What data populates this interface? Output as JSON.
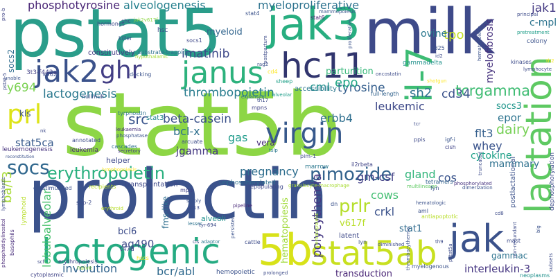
{
  "cloud": {
    "words": [
      {
        "text": "stat5b",
        "color": "#8dd645"
      },
      {
        "text": "prolactin",
        "color": "#3b528b"
      },
      {
        "text": "pstat5",
        "color": "#2a9d8a"
      },
      {
        "text": "milk",
        "color": "#3e4a89"
      },
      {
        "text": "jak3",
        "color": "#28ae80"
      },
      {
        "text": "janus",
        "color": "#2db27d"
      },
      {
        "text": "jak2",
        "color": "#3b528b"
      },
      {
        "text": "hc11",
        "color": "#31356e"
      },
      {
        "text": "ghr",
        "color": "#433e85"
      },
      {
        "text": "lactogenic",
        "color": "#25ab82"
      },
      {
        "text": "stat5ab",
        "color": "#c8e020"
      },
      {
        "text": "jak",
        "color": "#3b528b"
      },
      {
        "text": "5b",
        "color": "#d8e219"
      },
      {
        "text": "virgin",
        "color": "#38598c"
      },
      {
        "text": "socs",
        "color": "#31688e"
      },
      {
        "text": "lactation",
        "color": "#5ec962"
      },
      {
        "text": "il-7",
        "color": "#3dbc74"
      },
      {
        "text": "prl",
        "color": "#dde318"
      },
      {
        "text": "erythropoietin",
        "color": "#2ab07f"
      },
      {
        "text": "pimozide",
        "color": "#33638d"
      },
      {
        "text": "phosphotyrosine",
        "color": "#482475"
      },
      {
        "text": "alveologenesis",
        "color": "#27808e"
      },
      {
        "text": "myeloproliferative",
        "color": "#2c728e"
      },
      {
        "text": "tpo",
        "color": "#c2df23"
      },
      {
        "text": "jak1",
        "color": "#443983"
      },
      {
        "text": "c-mpl",
        "color": "#2c738e"
      },
      {
        "text": "parturition",
        "color": "#35b779"
      },
      {
        "text": "myeloid",
        "color": "#32658e"
      },
      {
        "text": "ovine",
        "color": "#2a788e"
      },
      {
        "text": "imatinib",
        "color": "#3e4989"
      },
      {
        "text": "lactogenesis",
        "color": "#2a788e"
      },
      {
        "text": "tyrosine",
        "color": "#355f8d"
      },
      {
        "text": "myelofibrosis",
        "color": "#46327e"
      },
      {
        "text": "thrombopoietin",
        "color": "#287c8e"
      },
      {
        "text": "cml",
        "color": "#20928c"
      },
      {
        "text": "epo",
        "color": "#21a685"
      },
      {
        "text": "sh2",
        "color": "#2d718e"
      },
      {
        "text": "tcrgamma",
        "color": "#3fbc73"
      },
      {
        "text": "cd34",
        "color": "#3b528b"
      },
      {
        "text": "leukemic",
        "color": "#3e4989"
      },
      {
        "text": "y694",
        "color": "#7ad151"
      },
      {
        "text": "src",
        "color": "#3a548c"
      },
      {
        "text": "beta-casein",
        "color": "#3b528b"
      },
      {
        "text": "erbb4",
        "color": "#2e6e8e"
      },
      {
        "text": "socs3",
        "color": "#1f968b"
      },
      {
        "text": "epor",
        "color": "#2c738e"
      },
      {
        "text": "dairy",
        "color": "#75d054"
      },
      {
        "text": "bcl-x",
        "color": "#2e6f8e"
      },
      {
        "text": "gas",
        "color": "#1e9b8a"
      },
      {
        "text": "flt3",
        "color": "#355f8d"
      },
      {
        "text": "stat5ca",
        "color": "#375a8c"
      },
      {
        "text": "vera",
        "color": "#472c7a"
      },
      {
        "text": "whey",
        "color": "#3a548c"
      },
      {
        "text": "jgamma",
        "color": "#453882"
      },
      {
        "text": "cytokine",
        "color": "#1fa088"
      },
      {
        "text": "mammary",
        "color": "#2d708e"
      },
      {
        "text": "pregnancy",
        "color": "#2e6e8e"
      },
      {
        "text": "gm-csf",
        "color": "#424086"
      },
      {
        "text": "gland",
        "color": "#31b57b"
      },
      {
        "text": "cos",
        "color": "#3a548c"
      },
      {
        "text": "ba/f3",
        "color": "#a8db34"
      },
      {
        "text": "prlr",
        "color": "#b5de2b"
      },
      {
        "text": "crkl",
        "color": "#3b528b"
      },
      {
        "text": "cows",
        "color": "#42be71"
      },
      {
        "text": "bcl6",
        "color": "#3d4d8a"
      },
      {
        "text": "ag490",
        "color": "#3e4c8a"
      },
      {
        "text": "polycythemia",
        "color": "#453882"
      },
      {
        "text": "v617f",
        "color": "#b8de29"
      },
      {
        "text": "lobuloalveolar",
        "color": "#4ac16d"
      },
      {
        "text": "stat1",
        "color": "#2f6b8e"
      },
      {
        "text": "involution",
        "color": "#32648e"
      },
      {
        "text": "bcr/abl",
        "color": "#306a8e"
      },
      {
        "text": "interleukin-3",
        "color": "#453581"
      },
      {
        "text": "gammac",
        "color": "#2c738e"
      },
      {
        "text": "hematopoiesis",
        "color": "#a0da39"
      },
      {
        "text": "transduction",
        "color": "#482475"
      },
      {
        "text": "stat4",
        "color": "#3b528b"
      },
      {
        "text": "stat6",
        "color": "#482173"
      },
      {
        "text": "mammopoiesis",
        "color": "#39568c"
      },
      {
        "text": "hormones",
        "color": "#3e4a89"
      },
      {
        "text": "shc",
        "color": "#3e4989"
      },
      {
        "text": "jak2v617f",
        "color": "#8fd744"
      },
      {
        "text": "killer",
        "color": "#3b518b"
      },
      {
        "text": "hsc",
        "color": "#3e4c8a"
      },
      {
        "text": "socs1",
        "color": "#3f4889"
      },
      {
        "text": "constitutively",
        "color": "#443a83"
      },
      {
        "text": "substrate-trapping",
        "color": "#2d708e"
      },
      {
        "text": "hypothalamic",
        "color": "#a5db36"
      },
      {
        "text": "k562",
        "color": "#3e4a89"
      },
      {
        "text": "socs2",
        "color": "#2f6c8e"
      },
      {
        "text": "3t3-f442a",
        "color": "#424086"
      },
      {
        "text": "null/null",
        "color": "#3e4c8a"
      },
      {
        "text": "docking",
        "color": "#3b528b"
      },
      {
        "text": "cd4",
        "color": "#fde725"
      },
      {
        "text": "sheep",
        "color": "#1fa088"
      },
      {
        "text": "accessibility",
        "color": "#2a788e"
      },
      {
        "text": "full-length",
        "color": "#33638d"
      },
      {
        "text": "kls",
        "color": "#3b528b"
      },
      {
        "text": "th17",
        "color": "#3e4c8a"
      },
      {
        "text": "alveolar",
        "color": "#1f9e89"
      },
      {
        "text": "tyrphostin",
        "color": "#2c728e"
      },
      {
        "text": "leukaemia",
        "color": "#472f7d"
      },
      {
        "text": "phosphatase",
        "color": "#3b528b"
      },
      {
        "text": "annotated",
        "color": "#3e4c8a"
      },
      {
        "text": "leukemia",
        "color": "#482878"
      },
      {
        "text": "leukemogenesis",
        "color": "#46327e"
      },
      {
        "text": "mpns",
        "color": "#414487"
      },
      {
        "text": "expansion",
        "color": "#2e6e8e"
      },
      {
        "text": "stat3",
        "color": "#24868e"
      },
      {
        "text": "tslp",
        "color": "#2a788e"
      },
      {
        "text": "igf-i",
        "color": "#3a548c"
      },
      {
        "text": "cish",
        "color": "#414487"
      },
      {
        "text": "ppis",
        "color": "#3e4a89"
      },
      {
        "text": "arcuate",
        "color": "#3e4c8a"
      },
      {
        "text": "cascades",
        "color": "#2d708e"
      },
      {
        "text": "secretory",
        "color": "#443983"
      },
      {
        "text": "helper",
        "color": "#3e4989"
      },
      {
        "text": "lymphopoiesis",
        "color": "#fde725"
      },
      {
        "text": "marrow",
        "color": "#2a778e"
      },
      {
        "text": "il2rbeta",
        "color": "#414487"
      },
      {
        "text": "pim-1",
        "color": "#3e4c8a"
      },
      {
        "text": "repopulating",
        "color": "#3e4989"
      },
      {
        "text": "multilineage",
        "color": "#5ec962"
      },
      {
        "text": "tetramers",
        "color": "#33638d"
      },
      {
        "text": "unphosphorylated",
        "color": "#2d708e"
      },
      {
        "text": "granulocyte-macrophage",
        "color": "#a8db34"
      },
      {
        "text": "transplantation",
        "color": "#3e4989"
      },
      {
        "text": "recipients",
        "color": "#b8de29"
      },
      {
        "text": "gh-stimulated",
        "color": "#3b528b"
      },
      {
        "text": "mpd",
        "color": "#414487"
      },
      {
        "text": "dimerization",
        "color": "#3b528b"
      },
      {
        "text": "phosphorylated",
        "color": "#46327e"
      },
      {
        "text": "fyn",
        "color": "#3b528b"
      },
      {
        "text": "stably",
        "color": "#3b528b"
      },
      {
        "text": "at13",
        "color": "#3e4c8a"
      },
      {
        "text": "pipeline",
        "color": "#482878"
      },
      {
        "text": "shp-2",
        "color": "#3e4c8a"
      },
      {
        "text": "erythroid",
        "color": "#b8de29"
      },
      {
        "text": "fms-like",
        "color": "#2e6e8e"
      },
      {
        "text": "dn",
        "color": "#3b528b"
      },
      {
        "text": "hematologic",
        "color": "#3b528b"
      },
      {
        "text": "aml",
        "color": "#3b528b"
      },
      {
        "text": "antiapoptotic",
        "color": "#b8de29"
      },
      {
        "text": "alveoli",
        "color": "#21918c"
      },
      {
        "text": "lesser",
        "color": "#2c728e"
      },
      {
        "text": "tyr-694",
        "color": "#3e4c8a"
      },
      {
        "text": "t47d",
        "color": "#3e4989"
      },
      {
        "text": "hscs",
        "color": "#fde725"
      },
      {
        "text": "cis",
        "color": "#3e4c8a"
      },
      {
        "text": "adaptor",
        "color": "#2a788e"
      },
      {
        "text": "cattle",
        "color": "#3e4c8a"
      },
      {
        "text": "latent",
        "color": "#3e4989"
      },
      {
        "text": "lyn",
        "color": "#3b528b"
      },
      {
        "text": "diminished",
        "color": "#3e4c8a"
      },
      {
        "text": "th9",
        "color": "#3e4c8a"
      },
      {
        "text": "erythropoiesis",
        "color": "#414487"
      },
      {
        "text": "naive",
        "color": "#8fd744"
      },
      {
        "text": "hemopoietic",
        "color": "#3b528b"
      },
      {
        "text": "prolonged",
        "color": "#3e4c8a"
      },
      {
        "text": "myelogenous",
        "color": "#3b528b"
      },
      {
        "text": "scf",
        "color": "#3e4c8a"
      },
      {
        "text": "cytoplasmic",
        "color": "#414487"
      },
      {
        "text": "neoplasms",
        "color": "#21918c"
      },
      {
        "text": "mast",
        "color": "#3e4c8a"
      },
      {
        "text": "cd8",
        "color": "#3e4c8a"
      },
      {
        "text": "lymphoid",
        "color": "#b8de29"
      },
      {
        "text": "basophils",
        "color": "#472c7a"
      },
      {
        "text": "lymphoblastic",
        "color": "#3e4c8a"
      },
      {
        "text": "phosphatidylinositol",
        "color": "#482878"
      },
      {
        "text": "reconstitution",
        "color": "#3b528b"
      },
      {
        "text": "principal",
        "color": "#3e4c8a"
      },
      {
        "text": "pretreatment",
        "color": "#1f9e89"
      },
      {
        "text": "colony",
        "color": "#3b528b"
      },
      {
        "text": "kinases",
        "color": "#3e4c8a"
      },
      {
        "text": "lymphocyte",
        "color": "#3e4c8a"
      },
      {
        "text": "th2",
        "color": "#fde725"
      },
      {
        "text": "cd25",
        "color": "#3b528b"
      },
      {
        "text": "id2",
        "color": "#3e4c8a"
      },
      {
        "text": "gammadelta",
        "color": "#21918c"
      },
      {
        "text": "oncostatin",
        "color": "#3e4c8a"
      },
      {
        "text": "rag2",
        "color": "#3b528b"
      },
      {
        "text": "shotgun",
        "color": "#fde725"
      },
      {
        "text": "tcr",
        "color": "#3e4c8a"
      },
      {
        "text": "nk",
        "color": "#3e4c8a"
      },
      {
        "text": "unable",
        "color": "#3b528b"
      },
      {
        "text": "pstat-5",
        "color": "#3e4c8a"
      },
      {
        "text": "pro-b",
        "color": "#414487"
      },
      {
        "text": "postpartum",
        "color": "#3e4c8a"
      },
      {
        "text": "proliferative",
        "color": "#3b528b"
      },
      {
        "text": "hematopoietic",
        "color": "#3b528b"
      },
      {
        "text": "hematopoietic",
        "color": "#a8db34"
      },
      {
        "text": "postlactational",
        "color": "#3b528b"
      },
      {
        "text": "dephosphorylation",
        "color": "#3e4c8a"
      },
      {
        "text": "truncated",
        "color": "#3e4c8a"
      },
      {
        "text": "thrombocythemia",
        "color": "#3b528b"
      },
      {
        "text": "pstat5a",
        "color": "#3e4c8a"
      },
      {
        "text": "persistent",
        "color": "#3b528b"
      },
      {
        "text": "non-redundant",
        "color": "#3e4c8a"
      },
      {
        "text": "subsets",
        "color": "#3e4c8a"
      },
      {
        "text": "blg",
        "color": "#3b528b"
      }
    ]
  }
}
